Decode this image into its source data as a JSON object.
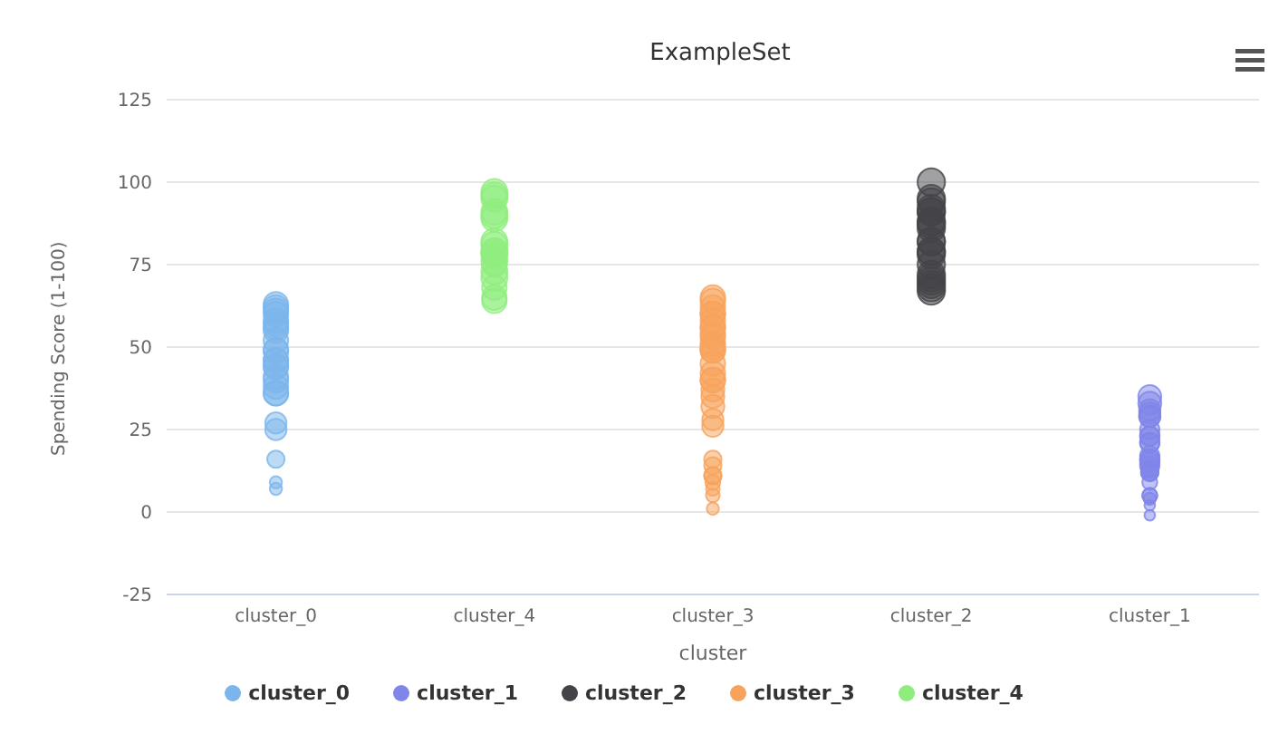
{
  "chart_data": {
    "type": "bubble",
    "title": "ExampleSet",
    "xlabel": "cluster",
    "ylabel": "Spending Score (1-100)",
    "categories": [
      "cluster_0",
      "cluster_4",
      "cluster_3",
      "cluster_2",
      "cluster_1"
    ],
    "ylim": [
      -25,
      125
    ],
    "yticks": [
      -25,
      0,
      25,
      50,
      75,
      100,
      125
    ],
    "grid": "y",
    "legend": "bottom",
    "marker": "circle",
    "series": [
      {
        "name": "cluster_0",
        "color": "#7cb5ec",
        "x": [
          "cluster_0",
          "cluster_0",
          "cluster_0",
          "cluster_0",
          "cluster_0",
          "cluster_0",
          "cluster_0",
          "cluster_0",
          "cluster_0",
          "cluster_0",
          "cluster_0",
          "cluster_0",
          "cluster_0",
          "cluster_0",
          "cluster_0",
          "cluster_0",
          "cluster_0",
          "cluster_0",
          "cluster_0",
          "cluster_0",
          "cluster_0",
          "cluster_0",
          "cluster_0",
          "cluster_0",
          "cluster_0"
        ],
        "values": [
          62,
          61,
          63,
          60,
          58,
          57,
          56,
          55,
          52,
          49,
          49,
          46,
          44,
          46,
          44,
          40,
          41,
          38,
          36,
          36,
          25,
          27,
          16,
          9,
          7
        ],
        "sizes": [
          0.8,
          0.8,
          0.8,
          0.8,
          0.8,
          0.8,
          0.8,
          0.8,
          0.8,
          0.8,
          0.8,
          0.8,
          0.8,
          0.8,
          0.8,
          0.8,
          0.8,
          0.8,
          0.8,
          0.8,
          0.6,
          0.6,
          0.4,
          0.2,
          0.2
        ]
      },
      {
        "name": "cluster_4",
        "color": "#90ed7d",
        "x": [
          "cluster_4",
          "cluster_4",
          "cluster_4",
          "cluster_4",
          "cluster_4",
          "cluster_4",
          "cluster_4",
          "cluster_4",
          "cluster_4",
          "cluster_4",
          "cluster_4",
          "cluster_4",
          "cluster_4",
          "cluster_4",
          "cluster_4",
          "cluster_4",
          "cluster_4",
          "cluster_4"
        ],
        "values": [
          97,
          95,
          96,
          89,
          90,
          91,
          82,
          81,
          78,
          79,
          75,
          79,
          76,
          73,
          71,
          68,
          65,
          64
        ],
        "sizes": [
          0.9,
          0.9,
          0.9,
          0.9,
          0.9,
          0.9,
          0.9,
          0.9,
          0.9,
          0.9,
          0.8,
          0.9,
          0.9,
          0.9,
          0.9,
          0.8,
          0.8,
          0.8
        ]
      },
      {
        "name": "cluster_3",
        "color": "#f7a35c",
        "x": [
          "cluster_3",
          "cluster_3",
          "cluster_3",
          "cluster_3",
          "cluster_3",
          "cluster_3",
          "cluster_3",
          "cluster_3",
          "cluster_3",
          "cluster_3",
          "cluster_3",
          "cluster_3",
          "cluster_3",
          "cluster_3",
          "cluster_3",
          "cluster_3",
          "cluster_3",
          "cluster_3",
          "cluster_3",
          "cluster_3",
          "cluster_3",
          "cluster_3",
          "cluster_3",
          "cluster_3",
          "cluster_3",
          "cluster_3",
          "cluster_3",
          "cluster_3",
          "cluster_3",
          "cluster_3",
          "cluster_3"
        ],
        "values": [
          65,
          62,
          64,
          60,
          60,
          56,
          58,
          56,
          53,
          54,
          51,
          49,
          50,
          49,
          45,
          42,
          40,
          40,
          37,
          35,
          32,
          26,
          28,
          16,
          14,
          11,
          11,
          9,
          7,
          5,
          1
        ],
        "sizes": [
          0.8,
          0.8,
          0.8,
          0.8,
          0.8,
          0.8,
          0.8,
          0.8,
          0.8,
          0.8,
          0.8,
          0.8,
          0.8,
          0.8,
          0.8,
          0.8,
          0.8,
          0.8,
          0.7,
          0.7,
          0.7,
          0.6,
          0.6,
          0.4,
          0.4,
          0.4,
          0.4,
          0.3,
          0.25,
          0.25,
          0.2
        ]
      },
      {
        "name": "cluster_2",
        "color": "#434348",
        "x": [
          "cluster_2",
          "cluster_2",
          "cluster_2",
          "cluster_2",
          "cluster_2",
          "cluster_2",
          "cluster_2",
          "cluster_2",
          "cluster_2",
          "cluster_2",
          "cluster_2",
          "cluster_2",
          "cluster_2",
          "cluster_2",
          "cluster_2",
          "cluster_2",
          "cluster_2",
          "cluster_2",
          "cluster_2",
          "cluster_2",
          "cluster_2",
          "cluster_2"
        ],
        "values": [
          100,
          95,
          94,
          92,
          91,
          91,
          88,
          86,
          88,
          87,
          82,
          82,
          79,
          79,
          78,
          75,
          72,
          70,
          71,
          69,
          68,
          67
        ],
        "sizes": [
          1,
          1,
          1,
          1,
          1,
          1,
          1,
          1,
          1,
          1,
          1,
          1,
          1,
          1,
          1,
          1,
          1,
          1,
          1,
          1,
          1,
          1
        ]
      },
      {
        "name": "cluster_1",
        "color": "#8085e9",
        "x": [
          "cluster_1",
          "cluster_1",
          "cluster_1",
          "cluster_1",
          "cluster_1",
          "cluster_1",
          "cluster_1",
          "cluster_1",
          "cluster_1",
          "cluster_1",
          "cluster_1",
          "cluster_1",
          "cluster_1",
          "cluster_1",
          "cluster_1",
          "cluster_1",
          "cluster_1",
          "cluster_1",
          "cluster_1",
          "cluster_1",
          "cluster_1",
          "cluster_1",
          "cluster_1",
          "cluster_1",
          "cluster_1",
          "cluster_1"
        ],
        "values": [
          31,
          30,
          29,
          35,
          33,
          29,
          23,
          25,
          21,
          23,
          21,
          17,
          16,
          14,
          15,
          16,
          12,
          13,
          12,
          12,
          9,
          5,
          5,
          4,
          2,
          -1
        ],
        "sizes": [
          0.6,
          0.6,
          0.6,
          0.7,
          0.7,
          0.6,
          0.5,
          0.5,
          0.5,
          0.5,
          0.5,
          0.5,
          0.5,
          0.5,
          0.5,
          0.5,
          0.4,
          0.4,
          0.4,
          0.4,
          0.3,
          0.3,
          0.3,
          0.2,
          0.15,
          0.15
        ]
      }
    ]
  }
}
